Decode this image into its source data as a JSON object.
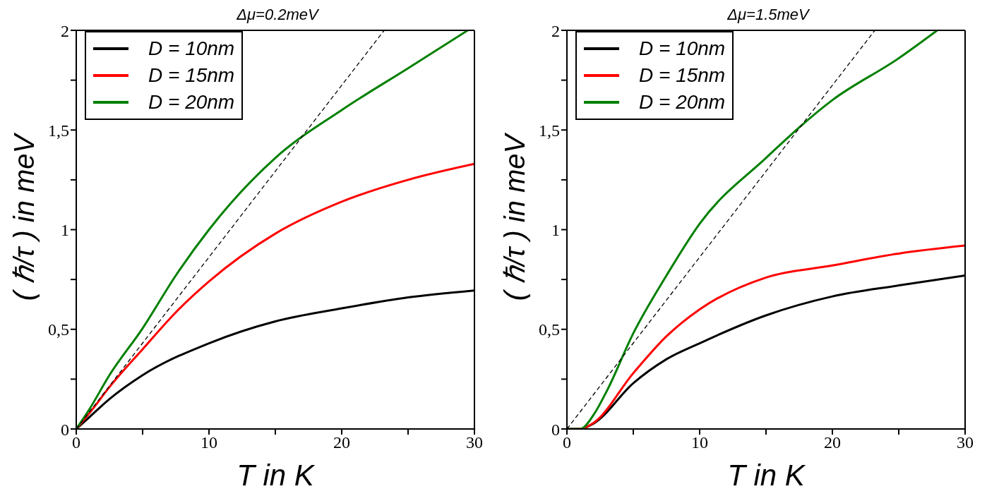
{
  "chart_data": [
    {
      "type": "line",
      "title": "Δμ=0.2meV",
      "xlabel": "T in K",
      "ylabel": "( ℏ/τ ) in meV",
      "xlim": [
        0,
        30
      ],
      "ylim": [
        0,
        2
      ],
      "xticks": [
        0,
        {
          "value": 5,
          "label": null
        },
        10,
        {
          "value": 15,
          "label": null
        },
        20,
        {
          "value": 25,
          "label": null
        },
        30
      ],
      "yticks": [
        0,
        {
          "value": 0.25,
          "label": null
        },
        {
          "value": 0.5,
          "label": "0,5"
        },
        {
          "value": 0.75,
          "label": null
        },
        1,
        {
          "value": 1.25,
          "label": null
        },
        {
          "value": 1.5,
          "label": "1,5"
        },
        {
          "value": 1.75,
          "label": null
        },
        2
      ],
      "legend": "top left",
      "series": [
        {
          "name": "D = 10nm",
          "color": "#000000",
          "x": [
            0,
            1,
            2.5,
            5,
            10,
            15,
            20,
            25,
            30
          ],
          "values": [
            0,
            0.06,
            0.15,
            0.27,
            0.43,
            0.54,
            0.605,
            0.66,
            0.695
          ]
        },
        {
          "name": "D = 15nm",
          "color": "#ff0000",
          "x": [
            0,
            1,
            2.5,
            5,
            7.5,
            10,
            15,
            20,
            25,
            30
          ],
          "values": [
            0,
            0.08,
            0.21,
            0.4,
            0.585,
            0.74,
            0.98,
            1.14,
            1.25,
            1.33
          ]
        },
        {
          "name": "D = 20nm",
          "color": "#008000",
          "x": [
            0,
            1,
            2.5,
            5,
            7.5,
            10,
            15,
            20,
            25,
            29.5
          ],
          "values": [
            0,
            0.1,
            0.27,
            0.505,
            0.77,
            1.0,
            1.36,
            1.6,
            1.81,
            2.0
          ]
        },
        {
          "color": "#000000",
          "line_style": "dashed",
          "x": [
            0,
            23.2
          ],
          "values": [
            0,
            2
          ]
        }
      ]
    },
    {
      "type": "line",
      "title": "Δμ=1.5meV",
      "xlabel": "T in K",
      "ylabel": "( ℏ/τ ) in meV",
      "xlim": [
        0,
        30
      ],
      "ylim": [
        0,
        2
      ],
      "xticks": [
        0,
        {
          "value": 5,
          "label": null
        },
        10,
        {
          "value": 15,
          "label": null
        },
        20,
        {
          "value": 25,
          "label": null
        },
        30
      ],
      "yticks": [
        0,
        {
          "value": 0.25,
          "label": null
        },
        {
          "value": 0.5,
          "label": "0,5"
        },
        {
          "value": 0.75,
          "label": null
        },
        1,
        {
          "value": 1.25,
          "label": null
        },
        {
          "value": 1.5,
          "label": "1,5"
        },
        {
          "value": 1.75,
          "label": null
        },
        2
      ],
      "legend": "top left",
      "series": [
        {
          "name": "D = 10nm",
          "color": "#000000",
          "x": [
            0,
            1,
            2,
            5,
            7.5,
            10,
            15,
            20,
            25,
            30
          ],
          "values": [
            0,
            0,
            0.027,
            0.23,
            0.35,
            0.43,
            0.57,
            0.665,
            0.72,
            0.77
          ]
        },
        {
          "name": "D = 15nm",
          "color": "#ff0000",
          "x": [
            0,
            1,
            2,
            5,
            7.5,
            10,
            15,
            20,
            25,
            30
          ],
          "values": [
            0,
            0,
            0.03,
            0.28,
            0.465,
            0.6,
            0.76,
            0.82,
            0.88,
            0.92
          ]
        },
        {
          "name": "D = 20nm",
          "color": "#008000",
          "x": [
            0,
            1,
            2,
            3,
            5,
            7.5,
            10,
            15,
            20,
            25,
            27.9
          ],
          "values": [
            0,
            0,
            0.07,
            0.19,
            0.48,
            0.77,
            1.03,
            1.36,
            1.65,
            1.86,
            2.0
          ]
        },
        {
          "color": "#000000",
          "line_style": "dashed",
          "x": [
            0,
            23.2
          ],
          "values": [
            0,
            2
          ]
        }
      ]
    }
  ]
}
